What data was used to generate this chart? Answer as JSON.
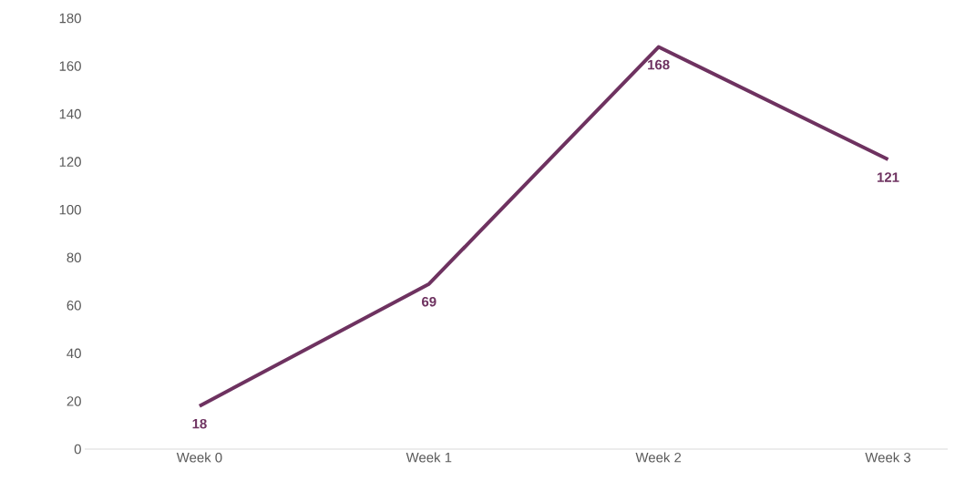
{
  "chart_data": {
    "type": "line",
    "categories": [
      "Week 0",
      "Week 1",
      "Week 2",
      "Week 3"
    ],
    "series": [
      {
        "color": "#6e3260",
        "values": [
          18,
          69,
          168,
          121
        ]
      }
    ],
    "ylim": [
      0,
      180
    ],
    "yticks": [
      0,
      20,
      40,
      60,
      80,
      100,
      120,
      140,
      160,
      180
    ],
    "data_labels": true,
    "grid": false,
    "marker": "none",
    "line_style": "solid"
  }
}
